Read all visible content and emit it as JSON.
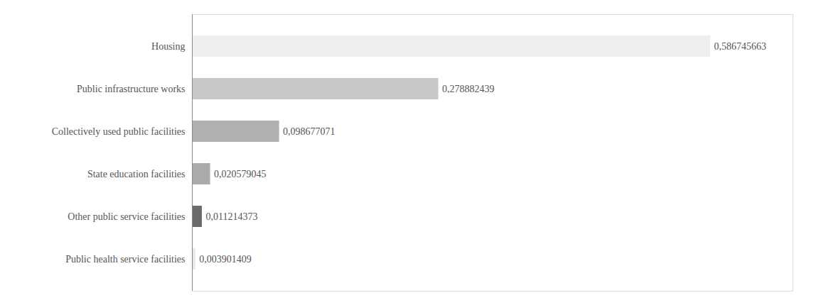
{
  "chart_data": {
    "type": "bar",
    "orientation": "horizontal",
    "categories": [
      "Public health service facilities",
      "Other public service facilities",
      "State education facilities",
      "Collectively used public facilities",
      "Public infrastructure works",
      "Housing"
    ],
    "values": [
      0.003901409,
      0.011214373,
      0.020579045,
      0.098677071,
      0.278882439,
      0.586745663
    ],
    "value_labels": [
      "0,003901409",
      "0,011214373",
      "0,020579045",
      "0,098677071",
      "0,278882439",
      "0,586745663"
    ],
    "data_labels": true,
    "colors": [
      "#e8e8e8",
      "#6b6b6b",
      "#aaaaaa",
      "#b0b0b0",
      "#c8c8c8",
      "#eeeeee"
    ],
    "xlim": [
      0,
      0.68
    ],
    "tick_labels": "y",
    "grid": false
  }
}
